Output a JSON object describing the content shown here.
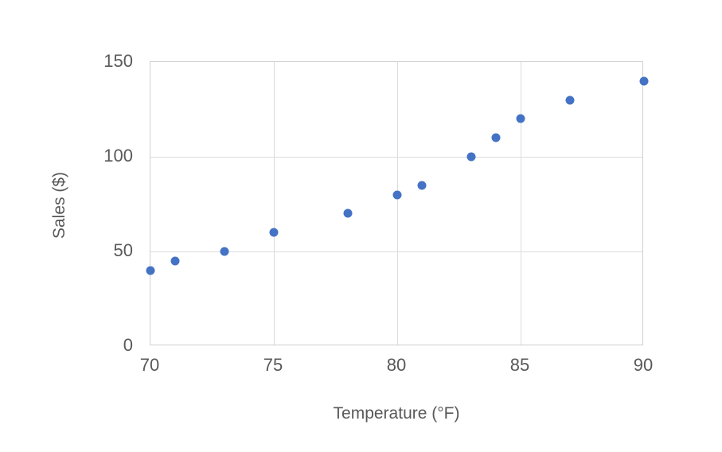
{
  "chart_data": {
    "type": "scatter",
    "x": [
      70,
      71,
      73,
      75,
      78,
      80,
      81,
      83,
      84,
      85,
      87,
      90
    ],
    "y": [
      40,
      45,
      50,
      60,
      70,
      80,
      85,
      100,
      110,
      120,
      130,
      140
    ],
    "title": "",
    "xlabel": "Temperature (°F)",
    "ylabel": "Sales ($)",
    "xlim": [
      70,
      90
    ],
    "ylim": [
      0,
      150
    ],
    "xticks": [
      70,
      75,
      80,
      85,
      90
    ],
    "yticks": [
      0,
      50,
      100,
      150
    ],
    "grid": true,
    "legend": false,
    "marker_color": "#4472C4",
    "gridline_color": "#dcdcdc",
    "plot_border_color": "#cfcfcf",
    "axis_text_color": "#595959",
    "background_color": "#ffffff"
  }
}
